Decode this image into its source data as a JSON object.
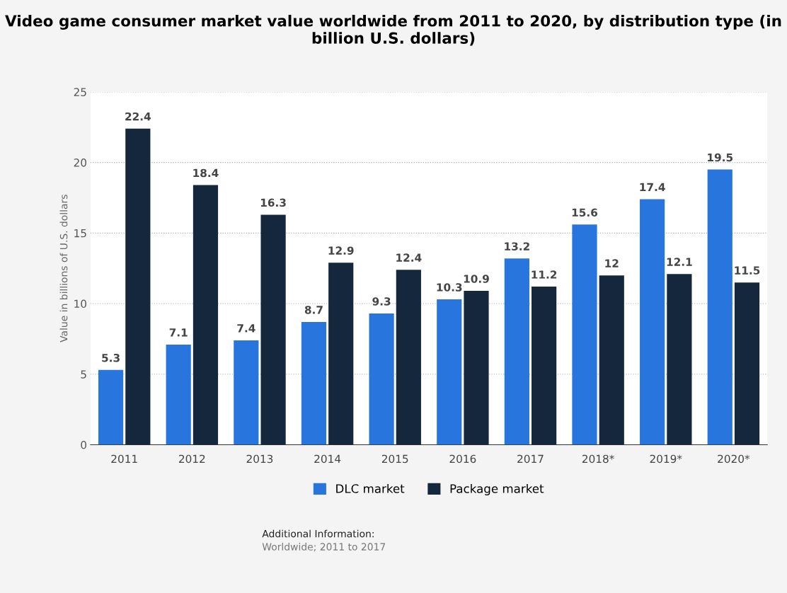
{
  "chart_data": {
    "type": "bar",
    "title": "Video game consumer market value worldwide from 2011 to 2020, by distribution type (in billion U.S. dollars)",
    "ylabel": "Value in billions of U.S. dollars",
    "categories": [
      "2011",
      "2012",
      "2013",
      "2014",
      "2015",
      "2016",
      "2017",
      "2018*",
      "2019*",
      "2020*"
    ],
    "series": [
      {
        "name": "DLC market",
        "color": "#2876dd",
        "values": [
          5.3,
          7.1,
          7.4,
          8.7,
          9.3,
          10.3,
          13.2,
          15.6,
          17.4,
          19.5
        ]
      },
      {
        "name": "Package market",
        "color": "#14273d",
        "values": [
          22.4,
          18.4,
          16.3,
          12.9,
          12.4,
          10.9,
          11.2,
          12,
          12.1,
          11.5
        ]
      }
    ],
    "ylim": [
      0,
      25
    ],
    "yticks": [
      0,
      5,
      10,
      15,
      20,
      25
    ],
    "grid": "y",
    "legend": "bottom",
    "data_labels": true,
    "annotations": [
      "Additional Information:",
      "Worldwide; 2011 to 2017"
    ]
  }
}
